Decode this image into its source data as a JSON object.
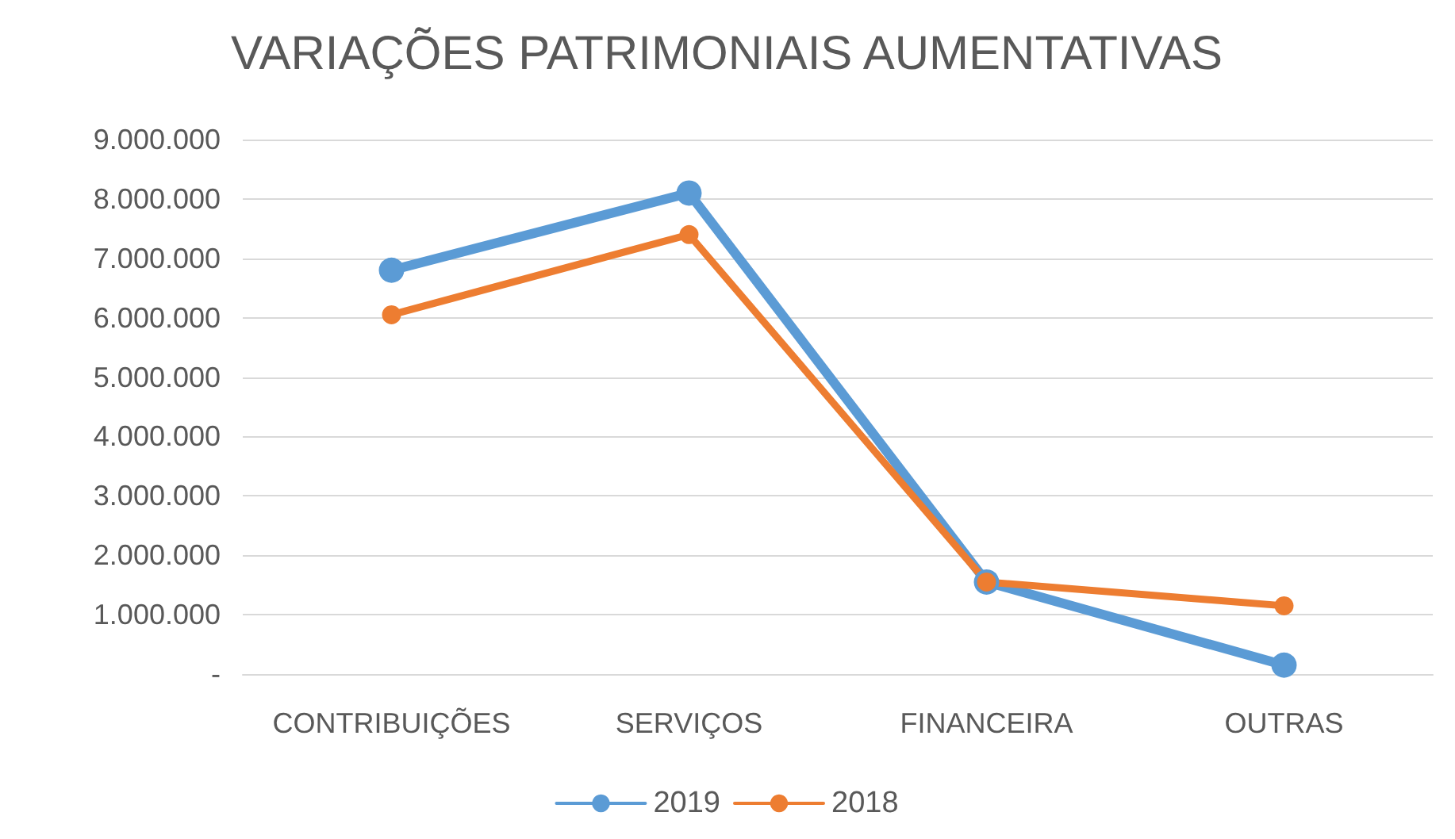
{
  "chart_data": {
    "type": "line",
    "title": "VARIAÇÕES PATRIMONIAIS AUMENTATIVAS",
    "categories": [
      "CONTRIBUIÇÕES",
      "SERVIÇOS",
      "FINANCEIRA",
      "OUTRAS"
    ],
    "series": [
      {
        "name": "2019",
        "color": "#5b9bd5",
        "values": [
          6800000,
          8100000,
          1550000,
          150000
        ]
      },
      {
        "name": "2018",
        "color": "#ed7d31",
        "values": [
          6050000,
          7400000,
          1550000,
          1150000
        ]
      }
    ],
    "ylim": [
      0,
      9000000
    ],
    "yticks": [
      {
        "value": 0,
        "label": "-"
      },
      {
        "value": 1000000,
        "label": "1.000.000"
      },
      {
        "value": 2000000,
        "label": "2.000.000"
      },
      {
        "value": 3000000,
        "label": "3.000.000"
      },
      {
        "value": 4000000,
        "label": "4.000.000"
      },
      {
        "value": 5000000,
        "label": "5.000.000"
      },
      {
        "value": 6000000,
        "label": "6.000.000"
      },
      {
        "value": 7000000,
        "label": "7.000.000"
      },
      {
        "value": 8000000,
        "label": "8.000.000"
      },
      {
        "value": 9000000,
        "label": "9.000.000"
      }
    ],
    "grid": "y",
    "legend": "bottom",
    "marker": "circle",
    "line_style": "solid"
  }
}
